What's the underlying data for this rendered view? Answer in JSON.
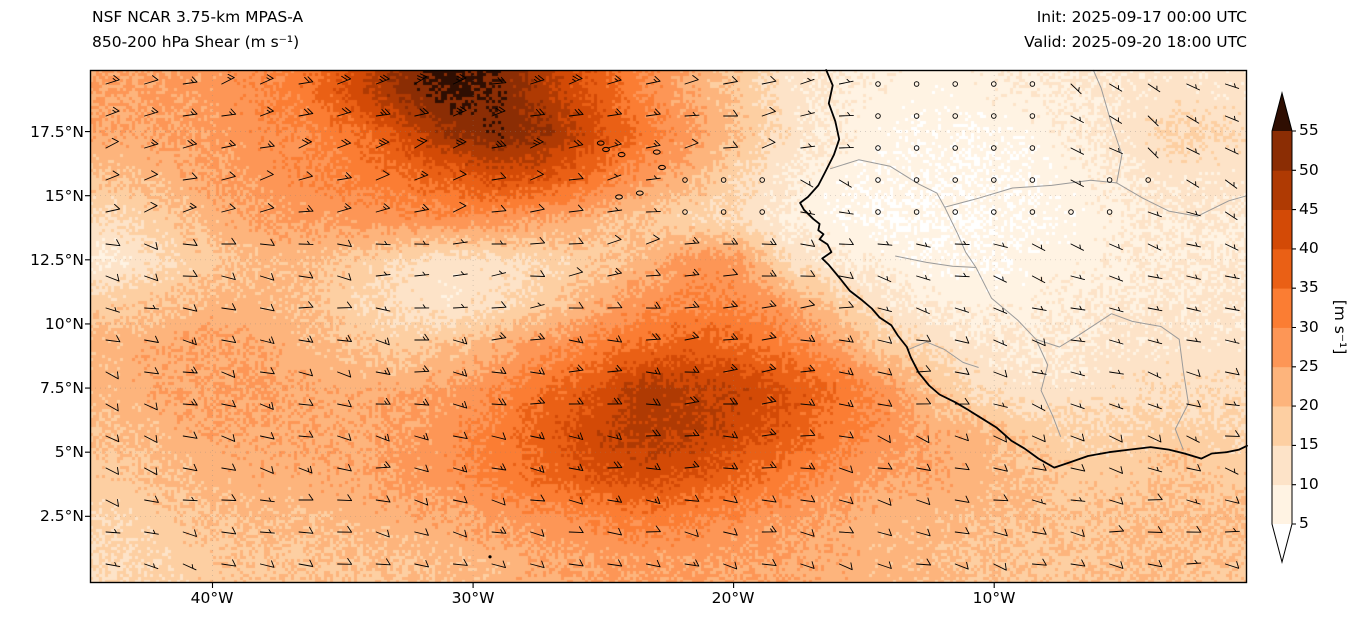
{
  "header": {
    "title_line1": "NSF NCAR 3.75-km MPAS-A",
    "title_line2": "850-200 hPa Shear (m s⁻¹)",
    "init_label": "Init: 2025-09-17 00:00 UTC",
    "valid_label": "Valid: 2025-09-20 18:00 UTC"
  },
  "axes": {
    "lat_ticks": [
      "17.5°N",
      "15°N",
      "12.5°N",
      "10°N",
      "7.5°N",
      "5°N",
      "2.5°N"
    ],
    "lon_ticks": [
      "40°W",
      "30°W",
      "20°W",
      "10°W"
    ]
  },
  "colorbar": {
    "ticks": [
      "55",
      "50",
      "45",
      "40",
      "35",
      "30",
      "25",
      "20",
      "15",
      "10",
      "5"
    ],
    "unit_label": "[m s⁻¹]"
  },
  "chart_data": {
    "type": "heatmap",
    "title": "NSF NCAR 3.75-km MPAS-A 850-200 hPa Shear (m s⁻¹)",
    "init": "2025-09-17 00:00 UTC",
    "valid": "2025-09-20 18:00 UTC",
    "field": "850-200 hPa vertical wind shear magnitude",
    "units": "m s⁻¹",
    "extent": {
      "lon_min": -44.7,
      "lon_max": -0.3,
      "lat_min": -0.1,
      "lat_max": 19.9
    },
    "lon_ticks_deg": [
      -40,
      -30,
      -20,
      -10
    ],
    "lat_ticks_deg": [
      17.5,
      15,
      12.5,
      10,
      7.5,
      5,
      2.5
    ],
    "levels": [
      5,
      10,
      15,
      20,
      25,
      30,
      35,
      40,
      45,
      50,
      55
    ],
    "palette": {
      "under": "#ffffff",
      "bands": [
        "#fff3e3",
        "#fde3c8",
        "#fdcfa2",
        "#fdb47c",
        "#fd9656",
        "#fb7d33",
        "#ea6015",
        "#d34a06",
        "#af3a03",
        "#8b2d04"
      ],
      "over": "#2f0e02"
    },
    "shear_grid": {
      "note": "estimated shear (m/s) on uniform grid spanning extent; rows north-to-south, cols west-to-east",
      "cols": 24,
      "rows": 12,
      "values": [
        [
          25,
          26,
          27,
          29,
          33,
          42,
          52,
          57,
          54,
          46,
          38,
          30,
          24,
          18,
          12,
          9,
          8,
          7,
          8,
          9,
          10,
          11,
          12,
          12
        ],
        [
          24,
          25,
          26,
          28,
          30,
          34,
          42,
          50,
          54,
          50,
          42,
          33,
          26,
          20,
          13,
          9,
          7,
          6,
          6,
          7,
          9,
          12,
          16,
          14
        ],
        [
          20,
          22,
          25,
          27,
          29,
          31,
          34,
          38,
          42,
          40,
          33,
          27,
          22,
          15,
          10,
          7,
          6,
          6,
          5,
          6,
          8,
          10,
          12,
          12
        ],
        [
          14,
          18,
          22,
          25,
          26,
          27,
          28,
          28,
          27,
          25,
          22,
          18,
          16,
          14,
          9,
          6,
          5,
          5,
          5,
          6,
          7,
          9,
          10,
          10
        ],
        [
          10,
          14,
          18,
          21,
          21,
          18,
          14,
          12,
          13,
          15,
          18,
          22,
          28,
          26,
          14,
          10,
          8,
          6,
          6,
          7,
          8,
          9,
          10,
          10
        ],
        [
          18,
          20,
          22,
          22,
          20,
          16,
          13,
          12,
          14,
          18,
          24,
          28,
          30,
          30,
          26,
          18,
          12,
          9,
          8,
          8,
          9,
          10,
          11,
          11
        ],
        [
          22,
          24,
          25,
          24,
          22,
          20,
          18,
          20,
          24,
          28,
          32,
          36,
          38,
          36,
          32,
          26,
          18,
          14,
          11,
          10,
          11,
          12,
          12,
          12
        ],
        [
          22,
          24,
          25,
          25,
          24,
          23,
          24,
          26,
          30,
          35,
          40,
          48,
          46,
          44,
          40,
          34,
          28,
          20,
          14,
          12,
          12,
          13,
          14,
          14
        ],
        [
          20,
          22,
          24,
          24,
          24,
          24,
          26,
          28,
          32,
          38,
          44,
          47,
          46,
          42,
          38,
          32,
          28,
          24,
          22,
          18,
          16,
          16,
          17,
          16
        ],
        [
          18,
          20,
          22,
          23,
          23,
          24,
          26,
          28,
          32,
          36,
          40,
          42,
          40,
          36,
          32,
          28,
          25,
          24,
          22,
          20,
          18,
          18,
          20,
          18
        ],
        [
          16,
          18,
          20,
          21,
          21,
          22,
          23,
          24,
          26,
          28,
          30,
          32,
          30,
          28,
          26,
          24,
          22,
          22,
          21,
          20,
          19,
          20,
          21,
          20
        ],
        [
          15,
          16,
          18,
          19,
          19,
          20,
          20,
          21,
          22,
          24,
          25,
          26,
          26,
          25,
          24,
          23,
          22,
          21,
          20,
          19,
          19,
          20,
          20,
          19
        ]
      ]
    },
    "wind_barbs_kt": {
      "note": "estimated shear-vector barb field (knots); rows north-to-south",
      "lon": [
        -43.1,
        -39.4,
        -35.6,
        -31.9,
        -28.1,
        -24.4,
        -20.6,
        -16.9,
        -13.1,
        -9.4,
        -5.6,
        -1.9
      ],
      "lat": [
        18.33,
        15.0,
        11.67,
        8.33,
        5.0,
        1.67
      ],
      "u": [
        [
          -12,
          -15,
          -19,
          -22,
          -19,
          -14,
          -9,
          -5,
          -2,
          0,
          -3,
          -5
        ],
        [
          -10,
          -12,
          -14,
          -12,
          -9,
          -5,
          -2,
          -3,
          -1,
          0,
          -2,
          -4
        ],
        [
          -8,
          -10,
          -8,
          -6,
          -8,
          -12,
          -14,
          -10,
          -5,
          -3,
          -4,
          -5
        ],
        [
          -10,
          -12,
          -12,
          -14,
          -16,
          -18,
          -18,
          -15,
          -10,
          -7,
          -6,
          -7
        ],
        [
          -9,
          -10,
          -11,
          -13,
          -15,
          -17,
          -15,
          -12,
          -10,
          -8,
          -8,
          -8
        ],
        [
          -7,
          -8,
          -9,
          -10,
          -11,
          -12,
          -11,
          -10,
          -9,
          -8,
          -8,
          -7
        ]
      ],
      "v": [
        [
          -4,
          -5,
          -7,
          -8,
          -6,
          -4,
          -2,
          -1,
          0,
          0,
          2,
          3
        ],
        [
          -3,
          -4,
          -4,
          -3,
          -2,
          -1,
          0,
          1,
          0,
          0,
          1,
          2
        ],
        [
          2,
          2,
          1,
          0,
          -1,
          -2,
          -2,
          0,
          1,
          1,
          1,
          2
        ],
        [
          3,
          3,
          2,
          2,
          1,
          0,
          -1,
          0,
          1,
          2,
          2,
          2
        ],
        [
          3,
          3,
          3,
          2,
          2,
          1,
          1,
          2,
          3,
          3,
          2,
          2
        ],
        [
          2,
          2,
          2,
          2,
          2,
          2,
          2,
          2,
          2,
          2,
          1,
          1
        ]
      ]
    }
  },
  "geo": {
    "coastline": [
      [
        -16.45,
        19.9
      ],
      [
        -16.2,
        19.3
      ],
      [
        -16.35,
        18.6
      ],
      [
        -16.1,
        17.9
      ],
      [
        -15.95,
        17.2
      ],
      [
        -16.15,
        16.6
      ],
      [
        -16.5,
        15.9
      ],
      [
        -16.75,
        15.4
      ],
      [
        -17.15,
        14.95
      ],
      [
        -17.45,
        14.72
      ],
      [
        -17.3,
        14.45
      ],
      [
        -16.95,
        14.1
      ],
      [
        -16.7,
        13.9
      ],
      [
        -16.75,
        13.65
      ],
      [
        -16.55,
        13.5
      ],
      [
        -16.7,
        13.3
      ],
      [
        -16.4,
        13.1
      ],
      [
        -16.25,
        12.8
      ],
      [
        -16.6,
        12.55
      ],
      [
        -16.35,
        12.3
      ],
      [
        -15.9,
        11.75
      ],
      [
        -15.55,
        11.3
      ],
      [
        -15.1,
        10.95
      ],
      [
        -14.7,
        10.6
      ],
      [
        -14.4,
        10.25
      ],
      [
        -13.95,
        9.95
      ],
      [
        -13.7,
        9.55
      ],
      [
        -13.35,
        9.1
      ],
      [
        -13.2,
        8.7
      ],
      [
        -12.9,
        8.1
      ],
      [
        -12.5,
        7.6
      ],
      [
        -12.1,
        7.25
      ],
      [
        -11.5,
        6.95
      ],
      [
        -11.0,
        6.65
      ],
      [
        -10.45,
        6.3
      ],
      [
        -9.9,
        5.95
      ],
      [
        -9.35,
        5.45
      ],
      [
        -8.85,
        5.15
      ],
      [
        -8.3,
        4.75
      ],
      [
        -7.7,
        4.4
      ],
      [
        -7.1,
        4.6
      ],
      [
        -6.4,
        4.85
      ],
      [
        -5.6,
        5.0
      ],
      [
        -4.8,
        5.1
      ],
      [
        -4.0,
        5.2
      ],
      [
        -3.3,
        5.1
      ],
      [
        -2.7,
        4.95
      ],
      [
        -2.05,
        4.75
      ],
      [
        -1.65,
        4.95
      ],
      [
        -1.1,
        5.0
      ],
      [
        -0.6,
        5.1
      ],
      [
        -0.3,
        5.25
      ]
    ],
    "borders": [
      [
        [
          -16.3,
          16.05
        ],
        [
          -15.2,
          16.4
        ],
        [
          -14.0,
          16.15
        ],
        [
          -12.9,
          15.45
        ],
        [
          -12.2,
          15.1
        ],
        [
          -11.9,
          14.55
        ]
      ],
      [
        [
          -11.9,
          14.55
        ],
        [
          -11.4,
          13.5
        ],
        [
          -11.1,
          12.8
        ],
        [
          -10.7,
          12.2
        ]
      ],
      [
        [
          -13.8,
          12.65
        ],
        [
          -12.6,
          12.4
        ],
        [
          -11.6,
          12.25
        ],
        [
          -10.7,
          12.2
        ]
      ],
      [
        [
          -10.7,
          12.2
        ],
        [
          -10.1,
          11.0
        ],
        [
          -9.1,
          10.15
        ],
        [
          -8.4,
          9.4
        ],
        [
          -7.95,
          8.4
        ],
        [
          -8.2,
          7.4
        ],
        [
          -7.75,
          6.4
        ],
        [
          -7.45,
          5.6
        ]
      ],
      [
        [
          -11.9,
          14.55
        ],
        [
          -10.6,
          14.9
        ],
        [
          -9.3,
          15.3
        ],
        [
          -7.8,
          15.4
        ],
        [
          -6.3,
          15.6
        ],
        [
          -5.3,
          15.5
        ]
      ],
      [
        [
          -5.3,
          15.5
        ],
        [
          -5.1,
          16.6
        ],
        [
          -5.5,
          17.8
        ],
        [
          -5.9,
          19.2
        ],
        [
          -6.2,
          19.9
        ]
      ],
      [
        [
          -5.3,
          15.5
        ],
        [
          -4.3,
          14.9
        ],
        [
          -3.3,
          14.4
        ],
        [
          -2.2,
          14.2
        ],
        [
          -1.0,
          14.8
        ],
        [
          -0.3,
          15.0
        ]
      ],
      [
        [
          -5.5,
          10.4
        ],
        [
          -4.7,
          10.1
        ],
        [
          -3.6,
          9.9
        ],
        [
          -2.9,
          9.4
        ],
        [
          -2.75,
          8.2
        ],
        [
          -2.55,
          6.9
        ],
        [
          -3.05,
          5.9
        ],
        [
          -2.75,
          5.1
        ]
      ],
      [
        [
          -8.4,
          9.4
        ],
        [
          -7.5,
          9.1
        ],
        [
          -6.7,
          9.6
        ],
        [
          -5.5,
          10.4
        ]
      ],
      [
        [
          -13.3,
          9.0
        ],
        [
          -12.6,
          9.3
        ],
        [
          -11.9,
          9.0
        ],
        [
          -11.2,
          8.5
        ],
        [
          -10.6,
          8.3
        ]
      ]
    ],
    "islands": [
      [
        -25.1,
        17.05
      ],
      [
        -24.9,
        16.8
      ],
      [
        -24.3,
        16.6
      ],
      [
        -22.95,
        16.7
      ],
      [
        -22.75,
        16.1
      ],
      [
        -23.6,
        15.1
      ],
      [
        -24.4,
        14.95
      ]
    ],
    "islets": [
      [
        -29.35,
        0.92
      ]
    ]
  }
}
